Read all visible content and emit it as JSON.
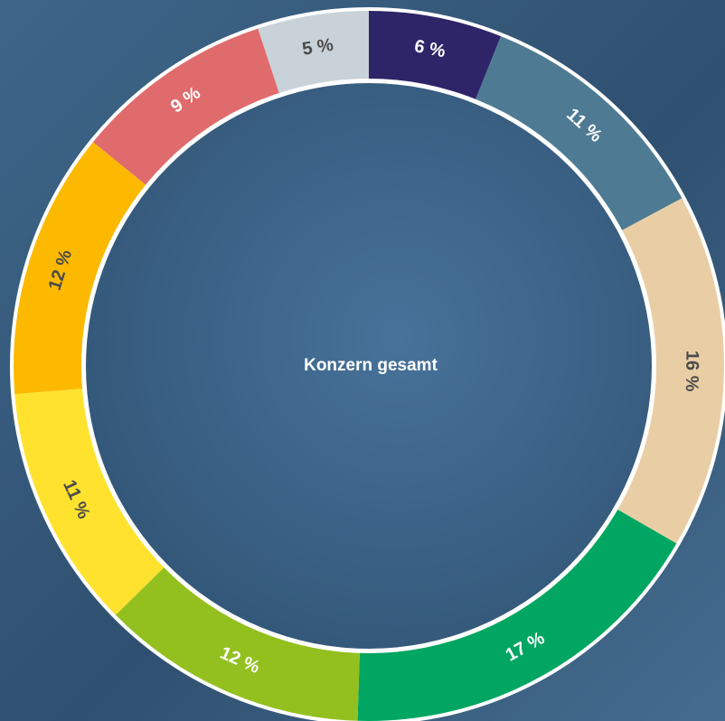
{
  "chart_data": {
    "type": "donut",
    "center_label": "Konzern gesamt",
    "values": [
      6,
      11,
      16,
      17,
      12,
      11,
      12,
      9,
      5
    ],
    "value_labels": [
      "6 %",
      "11 %",
      "16 %",
      "17 %",
      "12 %",
      "11 %",
      "12 %",
      "9 %",
      "5 %"
    ],
    "colors": [
      "#2e2468",
      "#4e7b93",
      "#e9cea5",
      "#00a661",
      "#93c01f",
      "#ffe22e",
      "#fcb900",
      "#e06b6d",
      "#c8d2d8"
    ]
  }
}
